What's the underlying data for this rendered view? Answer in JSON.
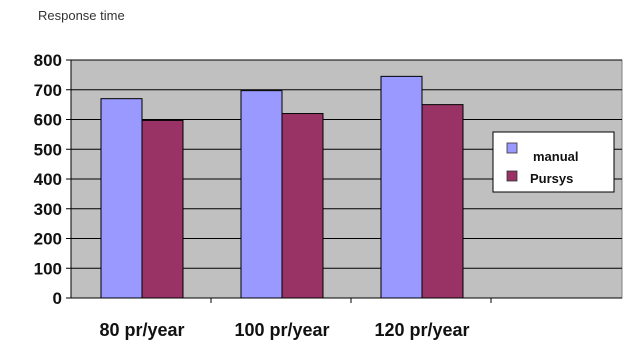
{
  "chart_data": {
    "type": "bar",
    "title": "Response time",
    "categories": [
      "80 pr/year",
      "100 pr/year",
      "120 pr/year"
    ],
    "series": [
      {
        "name": "manual",
        "values": [
          670,
          697,
          745
        ],
        "color": "#9999ff"
      },
      {
        "name": "Pursys",
        "values": [
          597,
          620,
          650
        ],
        "color": "#993366"
      }
    ],
    "yticks": [
      0,
      100,
      200,
      300,
      400,
      500,
      600,
      700,
      800
    ],
    "ylim": [
      0,
      800
    ],
    "grid": true,
    "plot_background": "#c0c0c0",
    "legend_position": "right"
  }
}
